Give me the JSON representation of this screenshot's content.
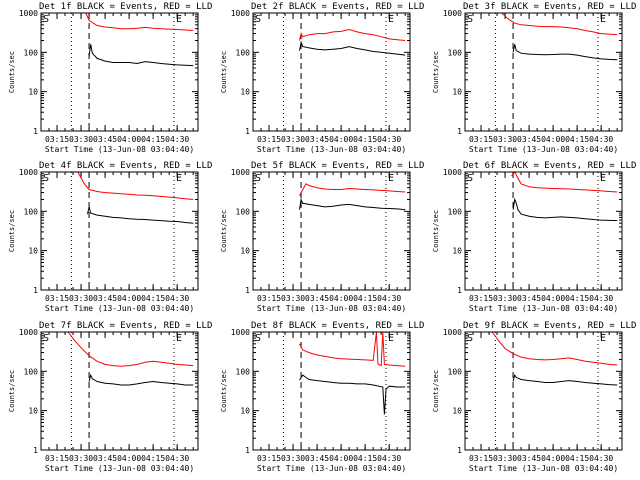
{
  "chart_data": [
    {
      "type": "line",
      "title": "Det 1f BLACK = Events, RED = LLD",
      "ylabel": "Counts/sec",
      "xlabel": "Start Time (13-Jun-08 03:04:40)",
      "x_ticks": [
        "03:15",
        "03:30",
        "03:45",
        "04:00",
        "04:15",
        "04:30"
      ],
      "y_ticks": [
        "1",
        "10",
        "100",
        "1000"
      ],
      "yscale": "log",
      "ylim": [
        1,
        1000
      ],
      "markers": [
        "S",
        "E"
      ],
      "series": [
        {
          "name": "LLD",
          "color": "#ff0000",
          "x": [
            "03:33",
            "03:35",
            "03:40",
            "03:45",
            "03:50",
            "03:55",
            "04:00",
            "04:05",
            "04:10",
            "04:15",
            "04:20",
            "04:25",
            "04:30",
            "04:35",
            "04:40"
          ],
          "values": [
            1000,
            650,
            480,
            440,
            420,
            400,
            400,
            410,
            430,
            410,
            400,
            390,
            380,
            370,
            360
          ]
        },
        {
          "name": "Events",
          "color": "#000000",
          "x": [
            "03:35",
            "03:36",
            "03:37",
            "03:40",
            "03:45",
            "03:50",
            "03:55",
            "04:00",
            "04:05",
            "04:10",
            "04:15",
            "04:20",
            "04:25",
            "04:30",
            "04:35",
            "04:40"
          ],
          "values": [
            80,
            160,
            95,
            70,
            60,
            55,
            55,
            55,
            52,
            58,
            55,
            52,
            50,
            48,
            47,
            46
          ]
        }
      ]
    },
    {
      "type": "line",
      "title": "Det 2f BLACK = Events, RED = LLD",
      "ylabel": "Counts/sec",
      "xlabel": "Start Time (13-Jun-08 03:04:40)",
      "x_ticks": [
        "03:15",
        "03:30",
        "03:45",
        "04:00",
        "04:15",
        "04:30"
      ],
      "y_ticks": [
        "1",
        "10",
        "100",
        "1000"
      ],
      "yscale": "log",
      "ylim": [
        1,
        1000
      ],
      "markers": [
        "S",
        "E"
      ],
      "series": [
        {
          "name": "LLD",
          "color": "#ff0000",
          "x": [
            "03:34",
            "03:35",
            "03:36",
            "03:40",
            "03:45",
            "03:50",
            "03:55",
            "04:00",
            "04:05",
            "04:10",
            "04:15",
            "04:20",
            "04:25",
            "04:30",
            "04:35",
            "04:40"
          ],
          "values": [
            200,
            300,
            250,
            280,
            300,
            300,
            330,
            340,
            380,
            330,
            300,
            280,
            250,
            220,
            210,
            200
          ]
        },
        {
          "name": "Events",
          "color": "#000000",
          "x": [
            "03:34",
            "03:35",
            "03:36",
            "03:40",
            "03:45",
            "03:50",
            "03:55",
            "04:00",
            "04:05",
            "04:10",
            "04:15",
            "04:20",
            "04:25",
            "04:30",
            "04:35",
            "04:40"
          ],
          "values": [
            110,
            180,
            140,
            130,
            120,
            115,
            120,
            125,
            140,
            125,
            115,
            105,
            100,
            95,
            90,
            85
          ]
        }
      ]
    },
    {
      "type": "line",
      "title": "Det 3f BLACK = Events, RED = LLD",
      "ylabel": "Counts/sec",
      "xlabel": "Start Time (13-Jun-08 03:04:40)",
      "x_ticks": [
        "03:15",
        "03:30",
        "03:45",
        "04:00",
        "04:15",
        "04:30"
      ],
      "y_ticks": [
        "1",
        "10",
        "100",
        "1000"
      ],
      "yscale": "log",
      "ylim": [
        1,
        1000
      ],
      "markers": [
        "S",
        "E"
      ],
      "series": [
        {
          "name": "LLD",
          "color": "#ff0000",
          "x": [
            "03:28",
            "03:32",
            "03:36",
            "03:40",
            "03:45",
            "03:50",
            "03:55",
            "04:00",
            "04:05",
            "04:10",
            "04:15",
            "04:20",
            "04:25",
            "04:30",
            "04:35",
            "04:40"
          ],
          "values": [
            1000,
            700,
            550,
            500,
            480,
            460,
            450,
            450,
            440,
            420,
            400,
            360,
            330,
            300,
            290,
            280
          ]
        },
        {
          "name": "Events",
          "color": "#000000",
          "x": [
            "03:35",
            "03:36",
            "03:37",
            "03:40",
            "03:45",
            "03:50",
            "03:55",
            "04:00",
            "04:05",
            "04:10",
            "04:15",
            "04:20",
            "04:25",
            "04:30",
            "04:35",
            "04:40"
          ],
          "values": [
            100,
            160,
            110,
            95,
            90,
            88,
            87,
            88,
            90,
            90,
            85,
            78,
            72,
            68,
            66,
            65
          ]
        }
      ]
    },
    {
      "type": "line",
      "title": "Det 4f BLACK = Events, RED = LLD",
      "ylabel": "Counts/sec",
      "xlabel": "Start Time (13-Jun-08 03:04:40)",
      "x_ticks": [
        "03:15",
        "03:30",
        "03:45",
        "04:00",
        "04:15",
        "04:30"
      ],
      "y_ticks": [
        "1",
        "10",
        "100",
        "1000"
      ],
      "yscale": "log",
      "ylim": [
        1,
        1000
      ],
      "markers": [
        "S",
        "E"
      ],
      "series": [
        {
          "name": "LLD",
          "color": "#ff0000",
          "x": [
            "03:28",
            "03:32",
            "03:35",
            "03:40",
            "03:45",
            "03:50",
            "03:55",
            "04:00",
            "04:05",
            "04:10",
            "04:15",
            "04:20",
            "04:25",
            "04:30",
            "04:35",
            "04:40"
          ],
          "values": [
            1000,
            500,
            360,
            320,
            300,
            290,
            280,
            270,
            260,
            255,
            250,
            240,
            230,
            220,
            210,
            200
          ]
        },
        {
          "name": "Events",
          "color": "#000000",
          "x": [
            "03:34",
            "03:35",
            "03:36",
            "03:40",
            "03:45",
            "03:50",
            "03:55",
            "04:00",
            "04:05",
            "04:10",
            "04:15",
            "04:20",
            "04:25",
            "04:30",
            "04:35",
            "04:40"
          ],
          "values": [
            85,
            130,
            90,
            80,
            75,
            70,
            68,
            65,
            63,
            62,
            60,
            58,
            56,
            55,
            52,
            50
          ]
        }
      ]
    },
    {
      "type": "line",
      "title": "Det 5f BLACK = Events, RED = LLD",
      "ylabel": "Counts/sec",
      "xlabel": "Start Time (13-Jun-08 03:04:40)",
      "x_ticks": [
        "03:15",
        "03:30",
        "03:45",
        "04:00",
        "04:15",
        "04:30"
      ],
      "y_ticks": [
        "1",
        "10",
        "100",
        "1000"
      ],
      "yscale": "log",
      "ylim": [
        1,
        1000
      ],
      "markers": [
        "S",
        "E"
      ],
      "series": [
        {
          "name": "LLD",
          "color": "#ff0000",
          "x": [
            "03:34",
            "03:36",
            "03:38",
            "03:40",
            "03:45",
            "03:50",
            "03:55",
            "04:00",
            "04:05",
            "04:10",
            "04:15",
            "04:20",
            "04:25",
            "04:30",
            "04:35",
            "04:40"
          ],
          "values": [
            250,
            350,
            500,
            450,
            400,
            370,
            360,
            360,
            380,
            370,
            360,
            350,
            340,
            330,
            320,
            310
          ]
        },
        {
          "name": "Events",
          "color": "#000000",
          "x": [
            "03:34",
            "03:35",
            "03:36",
            "03:40",
            "03:45",
            "03:50",
            "03:55",
            "04:00",
            "04:05",
            "04:10",
            "04:15",
            "04:20",
            "04:25",
            "04:30",
            "04:35",
            "04:40"
          ],
          "values": [
            110,
            200,
            160,
            150,
            140,
            130,
            135,
            145,
            150,
            140,
            130,
            125,
            120,
            118,
            115,
            110
          ]
        }
      ]
    },
    {
      "type": "line",
      "title": "Det 6f BLACK = Events, RED = LLD",
      "ylabel": "Counts/sec",
      "xlabel": "Start Time (13-Jun-08 03:04:40)",
      "x_ticks": [
        "03:15",
        "03:30",
        "03:45",
        "04:00",
        "04:15",
        "04:30"
      ],
      "y_ticks": [
        "1",
        "10",
        "100",
        "1000"
      ],
      "yscale": "log",
      "ylim": [
        1,
        1000
      ],
      "markers": [
        "S",
        "E"
      ],
      "series": [
        {
          "name": "LLD",
          "color": "#ff0000",
          "x": [
            "03:34",
            "03:36",
            "03:38",
            "03:40",
            "03:45",
            "03:50",
            "03:55",
            "04:00",
            "04:05",
            "04:10",
            "04:15",
            "04:20",
            "04:25",
            "04:30",
            "04:35",
            "04:40"
          ],
          "values": [
            800,
            1000,
            700,
            500,
            420,
            400,
            390,
            380,
            375,
            370,
            360,
            350,
            340,
            330,
            320,
            310
          ]
        },
        {
          "name": "Events",
          "color": "#000000",
          "x": [
            "03:35",
            "03:36",
            "03:37",
            "03:38",
            "03:40",
            "03:45",
            "03:50",
            "03:55",
            "04:00",
            "04:05",
            "04:10",
            "04:15",
            "04:20",
            "04:25",
            "04:30",
            "04:40"
          ],
          "values": [
            110,
            200,
            160,
            110,
            85,
            75,
            70,
            68,
            70,
            72,
            70,
            68,
            65,
            62,
            60,
            58
          ]
        }
      ]
    },
    {
      "type": "line",
      "title": "Det 7f BLACK = Events, RED = LLD",
      "ylabel": "Counts/sec",
      "xlabel": "Start Time (13-Jun-08 03:04:40)",
      "x_ticks": [
        "03:15",
        "03:30",
        "03:45",
        "04:00",
        "04:15",
        "04:30"
      ],
      "y_ticks": [
        "1",
        "10",
        "100",
        "1000"
      ],
      "yscale": "log",
      "ylim": [
        1,
        1000
      ],
      "markers": [
        "S",
        "E"
      ],
      "series": [
        {
          "name": "LLD",
          "color": "#ff0000",
          "x": [
            "03:22",
            "03:26",
            "03:30",
            "03:35",
            "03:40",
            "03:45",
            "03:50",
            "03:55",
            "04:00",
            "04:05",
            "04:10",
            "04:15",
            "04:20",
            "04:25",
            "04:30",
            "04:35",
            "04:40"
          ],
          "values": [
            1000,
            600,
            400,
            250,
            180,
            150,
            140,
            135,
            140,
            150,
            170,
            180,
            170,
            160,
            150,
            145,
            140
          ]
        },
        {
          "name": "Events",
          "color": "#000000",
          "x": [
            "03:35",
            "03:36",
            "03:37",
            "03:40",
            "03:45",
            "03:50",
            "03:55",
            "04:00",
            "04:05",
            "04:10",
            "04:15",
            "04:20",
            "04:25",
            "04:30",
            "04:35",
            "04:40"
          ],
          "values": [
            55,
            80,
            65,
            55,
            50,
            48,
            45,
            45,
            48,
            52,
            55,
            52,
            50,
            48,
            45,
            45
          ]
        }
      ]
    },
    {
      "type": "line",
      "title": "Det 8f BLACK = Events, RED = LLD",
      "ylabel": "Counts/sec",
      "xlabel": "Start Time (13-Jun-08 03:04:40)",
      "x_ticks": [
        "03:15",
        "03:30",
        "03:45",
        "04:00",
        "04:15",
        "04:30"
      ],
      "y_ticks": [
        "1",
        "10",
        "100",
        "1000"
      ],
      "yscale": "log",
      "ylim": [
        1,
        1000
      ],
      "markers": [
        "S",
        "E"
      ],
      "series": [
        {
          "name": "LLD",
          "color": "#ff0000",
          "x": [
            "03:34",
            "03:36",
            "03:40",
            "03:45",
            "03:50",
            "03:55",
            "04:00",
            "04:05",
            "04:10",
            "04:15",
            "04:20",
            "04:22",
            "04:23",
            "04:25",
            "04:26",
            "04:27",
            "04:30",
            "04:35",
            "04:40"
          ],
          "values": [
            500,
            350,
            300,
            260,
            240,
            220,
            210,
            205,
            200,
            195,
            190,
            1000,
            150,
            140,
            1000,
            150,
            145,
            140,
            135
          ]
        },
        {
          "name": "Events",
          "color": "#000000",
          "x": [
            "03:34",
            "03:36",
            "03:38",
            "03:40",
            "03:45",
            "03:50",
            "03:55",
            "04:00",
            "04:05",
            "04:10",
            "04:15",
            "04:20",
            "04:26",
            "04:27",
            "04:28",
            "04:30",
            "04:35",
            "04:40"
          ],
          "values": [
            60,
            80,
            70,
            62,
            58,
            55,
            52,
            50,
            50,
            48,
            48,
            45,
            40,
            8,
            35,
            42,
            40,
            40
          ]
        }
      ]
    },
    {
      "type": "line",
      "title": "Det 9f BLACK = Events, RED = LLD",
      "ylabel": "Counts/sec",
      "xlabel": "Start Time (13-Jun-08 03:04:40)",
      "x_ticks": [
        "03:15",
        "03:30",
        "03:45",
        "04:00",
        "04:15",
        "04:30"
      ],
      "y_ticks": [
        "1",
        "10",
        "100",
        "1000"
      ],
      "yscale": "log",
      "ylim": [
        1,
        1000
      ],
      "markers": [
        "S",
        "E"
      ],
      "series": [
        {
          "name": "LLD",
          "color": "#ff0000",
          "x": [
            "03:22",
            "03:26",
            "03:30",
            "03:35",
            "03:40",
            "03:45",
            "03:50",
            "03:55",
            "04:00",
            "04:05",
            "04:10",
            "04:15",
            "04:20",
            "04:25",
            "04:30",
            "04:35",
            "04:40"
          ],
          "values": [
            1000,
            600,
            380,
            280,
            230,
            210,
            200,
            195,
            200,
            210,
            220,
            200,
            180,
            170,
            160,
            150,
            145
          ]
        },
        {
          "name": "Events",
          "color": "#000000",
          "x": [
            "03:35",
            "03:36",
            "03:37",
            "03:40",
            "03:45",
            "03:50",
            "03:55",
            "04:00",
            "04:05",
            "04:10",
            "04:15",
            "04:20",
            "04:25",
            "04:30",
            "04:35",
            "04:40"
          ],
          "values": [
            55,
            80,
            70,
            62,
            58,
            55,
            52,
            52,
            55,
            58,
            55,
            52,
            50,
            48,
            46,
            45
          ]
        }
      ]
    }
  ]
}
